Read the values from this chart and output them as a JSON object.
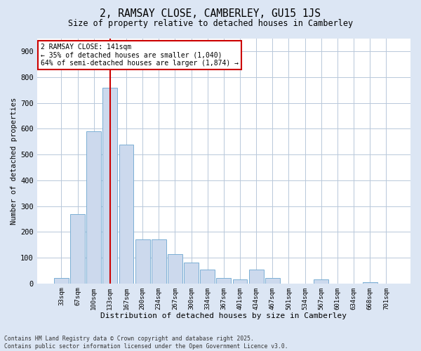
{
  "title1": "2, RAMSAY CLOSE, CAMBERLEY, GU15 1JS",
  "title2": "Size of property relative to detached houses in Camberley",
  "xlabel": "Distribution of detached houses by size in Camberley",
  "ylabel": "Number of detached properties",
  "categories": [
    "33sqm",
    "67sqm",
    "100sqm",
    "133sqm",
    "167sqm",
    "200sqm",
    "234sqm",
    "267sqm",
    "300sqm",
    "334sqm",
    "367sqm",
    "401sqm",
    "434sqm",
    "467sqm",
    "501sqm",
    "534sqm",
    "567sqm",
    "601sqm",
    "634sqm",
    "668sqm",
    "701sqm"
  ],
  "values": [
    20,
    270,
    590,
    760,
    540,
    170,
    170,
    115,
    80,
    55,
    20,
    15,
    55,
    20,
    0,
    0,
    15,
    0,
    0,
    5,
    0
  ],
  "bar_color": "#ccd9ed",
  "bar_edge_color": "#7bafd4",
  "vline_x": 3,
  "vline_color": "#cc0000",
  "annotation_text": "2 RAMSAY CLOSE: 141sqm\n← 35% of detached houses are smaller (1,040)\n64% of semi-detached houses are larger (1,874) →",
  "annotation_box_color": "#cc0000",
  "ylim": [
    0,
    950
  ],
  "yticks": [
    0,
    100,
    200,
    300,
    400,
    500,
    600,
    700,
    800,
    900
  ],
  "footnote": "Contains HM Land Registry data © Crown copyright and database right 2025.\nContains public sector information licensed under the Open Government Licence v3.0.",
  "bg_color": "#dce6f4",
  "plot_bg_color": "#dce6f4",
  "inner_bg_color": "#ffffff",
  "grid_color": "#b8c8da"
}
